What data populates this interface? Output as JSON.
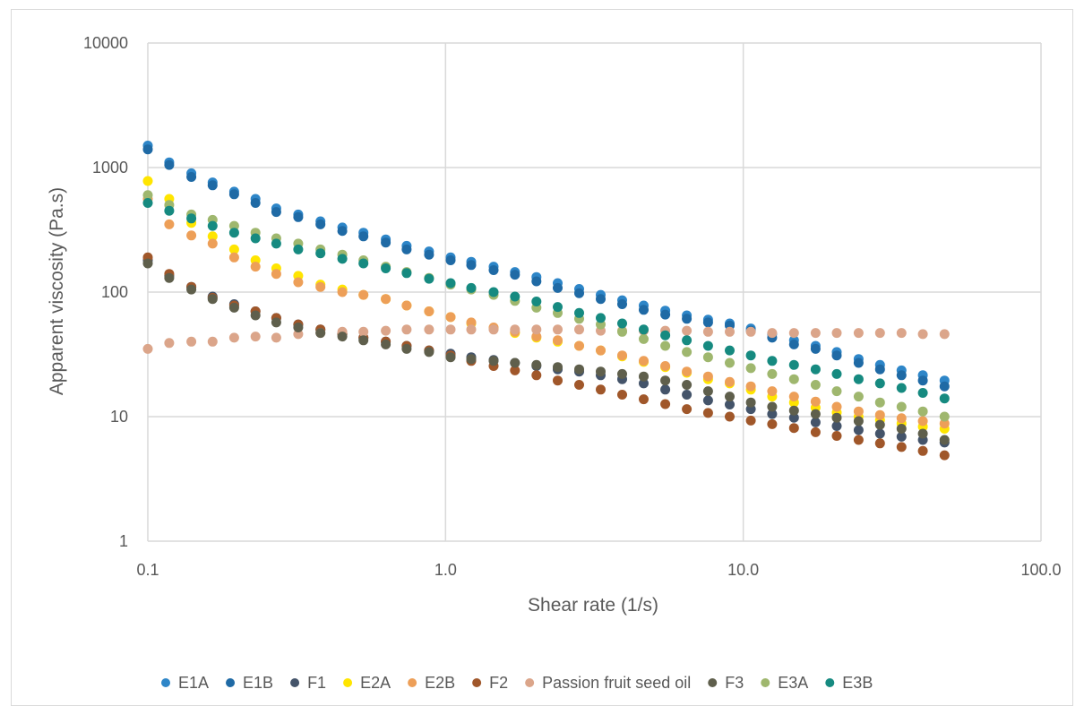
{
  "chart_data": {
    "type": "scatter",
    "title": "",
    "xlabel": "Shear rate (1/s)",
    "ylabel": "Apparent viscosity (Pa.s)",
    "x_scale": "log",
    "y_scale": "log",
    "xlim": [
      0.1,
      100
    ],
    "ylim": [
      1,
      10000
    ],
    "x_tick_labels": [
      "0.1",
      "1.0",
      "10.0",
      "100.0"
    ],
    "y_tick_labels": [
      "1",
      "10",
      "100",
      "1000",
      "10000"
    ],
    "grid": "major gridlines on both axes",
    "legend_position": "bottom",
    "x": [
      0.1,
      0.118,
      0.14,
      0.165,
      0.195,
      0.23,
      0.27,
      0.32,
      0.38,
      0.45,
      0.53,
      0.63,
      0.74,
      0.88,
      1.04,
      1.22,
      1.45,
      1.71,
      2.02,
      2.38,
      2.81,
      3.32,
      3.92,
      4.63,
      5.47,
      6.46,
      7.62,
      9.0,
      10.6,
      12.5,
      14.8,
      17.5,
      20.6,
      24.4,
      28.8,
      34.0,
      40.1,
      47.4
    ],
    "series": [
      {
        "name": "E1A",
        "color": "#2e86c8",
        "values": [
          1500,
          1100,
          900,
          760,
          640,
          560,
          470,
          420,
          370,
          330,
          300,
          265,
          235,
          212,
          190,
          175,
          160,
          145,
          132,
          118,
          106,
          95,
          86,
          78,
          71,
          65,
          60,
          56,
          51,
          46,
          41,
          37,
          33,
          29,
          26,
          23.5,
          21.5,
          19.5
        ]
      },
      {
        "name": "E1B",
        "color": "#1f6aa5",
        "values": [
          1400,
          1050,
          840,
          720,
          610,
          520,
          440,
          400,
          350,
          310,
          280,
          250,
          220,
          200,
          180,
          165,
          150,
          138,
          122,
          108,
          98,
          88,
          80,
          72,
          66,
          61,
          57,
          54,
          49,
          43,
          38,
          35,
          31,
          27,
          24,
          21.5,
          19.5,
          17.5
        ]
      },
      {
        "name": "F1",
        "color": "#44546a",
        "values": [
          180,
          135,
          110,
          92,
          80,
          70,
          62,
          55,
          50,
          46,
          43,
          40,
          37,
          34,
          32,
          30,
          28.5,
          27,
          25.5,
          24,
          23,
          21.5,
          20,
          18.5,
          16.5,
          15,
          13.5,
          12.5,
          11.5,
          10.5,
          9.8,
          9,
          8.4,
          7.8,
          7.3,
          6.9,
          6.5,
          6.2
        ]
      },
      {
        "name": "E2A",
        "color": "#ffe500",
        "values": [
          780,
          560,
          360,
          280,
          220,
          180,
          155,
          135,
          115,
          105,
          95,
          88,
          78,
          70,
          63,
          56,
          51,
          47,
          43,
          40,
          37,
          34,
          30.5,
          27.5,
          25,
          22.5,
          20,
          18.5,
          16.5,
          14.5,
          13,
          11.8,
          10.8,
          10,
          9.4,
          8.8,
          8.3,
          8
        ]
      },
      {
        "name": "E2B",
        "color": "#ed9f58",
        "values": [
          560,
          350,
          285,
          245,
          190,
          160,
          140,
          120,
          110,
          100,
          95,
          88,
          78,
          70,
          63,
          57,
          52,
          48,
          44,
          41,
          37,
          34,
          31,
          28,
          25.5,
          23,
          21,
          19,
          17.5,
          16,
          14.5,
          13.2,
          12,
          11,
          10.3,
          9.7,
          9.2,
          8.8
        ]
      },
      {
        "name": "F2",
        "color": "#a0572a",
        "values": [
          190,
          140,
          110,
          90,
          78,
          70,
          62,
          55,
          50,
          46,
          43,
          40,
          37,
          34,
          31,
          28,
          25.5,
          23.5,
          21.5,
          19.5,
          18,
          16.5,
          15,
          13.8,
          12.6,
          11.5,
          10.7,
          10,
          9.3,
          8.7,
          8.1,
          7.5,
          7,
          6.5,
          6.1,
          5.7,
          5.3,
          4.9
        ]
      },
      {
        "name": "Passion fruit seed oil",
        "color": "#dba58a",
        "values": [
          35,
          39,
          40,
          40,
          43,
          44,
          43,
          46,
          47,
          48,
          48,
          49,
          50,
          50,
          50,
          50,
          50,
          50,
          50,
          50,
          50,
          49,
          49,
          49,
          49,
          49,
          48,
          48,
          48,
          47,
          47,
          47,
          47,
          47,
          47,
          47,
          46,
          46
        ]
      },
      {
        "name": "F3",
        "color": "#5f5f4c",
        "values": [
          170,
          130,
          105,
          88,
          75,
          65,
          57,
          52,
          47,
          44,
          41,
          38,
          35,
          33,
          30,
          29,
          28,
          27,
          26,
          25,
          24,
          23,
          22,
          21,
          19.5,
          18,
          16,
          14.5,
          13,
          12,
          11.2,
          10.5,
          9.8,
          9.2,
          8.6,
          8,
          7.3,
          6.5
        ]
      },
      {
        "name": "E3A",
        "color": "#9fb76e",
        "values": [
          600,
          500,
          420,
          380,
          340,
          300,
          270,
          245,
          220,
          200,
          180,
          160,
          145,
          130,
          115,
          105,
          95,
          85,
          75,
          68,
          61,
          55,
          48,
          42,
          37,
          33,
          30,
          27,
          24.5,
          22,
          20,
          18,
          16,
          14.5,
          13,
          12,
          11,
          10
        ]
      },
      {
        "name": "E3B",
        "color": "#168a80",
        "values": [
          520,
          450,
          390,
          340,
          300,
          270,
          245,
          220,
          205,
          185,
          170,
          155,
          142,
          128,
          118,
          108,
          100,
          92,
          84,
          76,
          68,
          62,
          56,
          50,
          45,
          41,
          37,
          34,
          31,
          28,
          26,
          24,
          22,
          20,
          18.5,
          17,
          15.5,
          14
        ]
      }
    ]
  }
}
